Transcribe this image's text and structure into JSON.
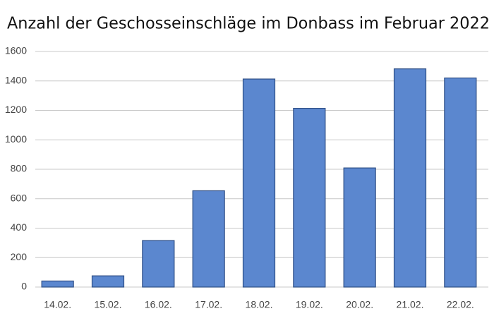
{
  "chart_data": {
    "type": "bar",
    "title": "Anzahl der Geschosseinschläge im Donbass im Februar 2022",
    "categories": [
      "14.02.",
      "15.02.",
      "16.02.",
      "17.02.",
      "18.02.",
      "19.02.",
      "20.02.",
      "21.02.",
      "22.02."
    ],
    "values": [
      41,
      76,
      316,
      654,
      1413,
      1214,
      809,
      1482,
      1420
    ],
    "color": "#5b87cf",
    "ylim": [
      0,
      1600
    ],
    "yticks": [
      0,
      200,
      400,
      600,
      800,
      1000,
      1200,
      1400,
      1600
    ],
    "grid": true
  }
}
